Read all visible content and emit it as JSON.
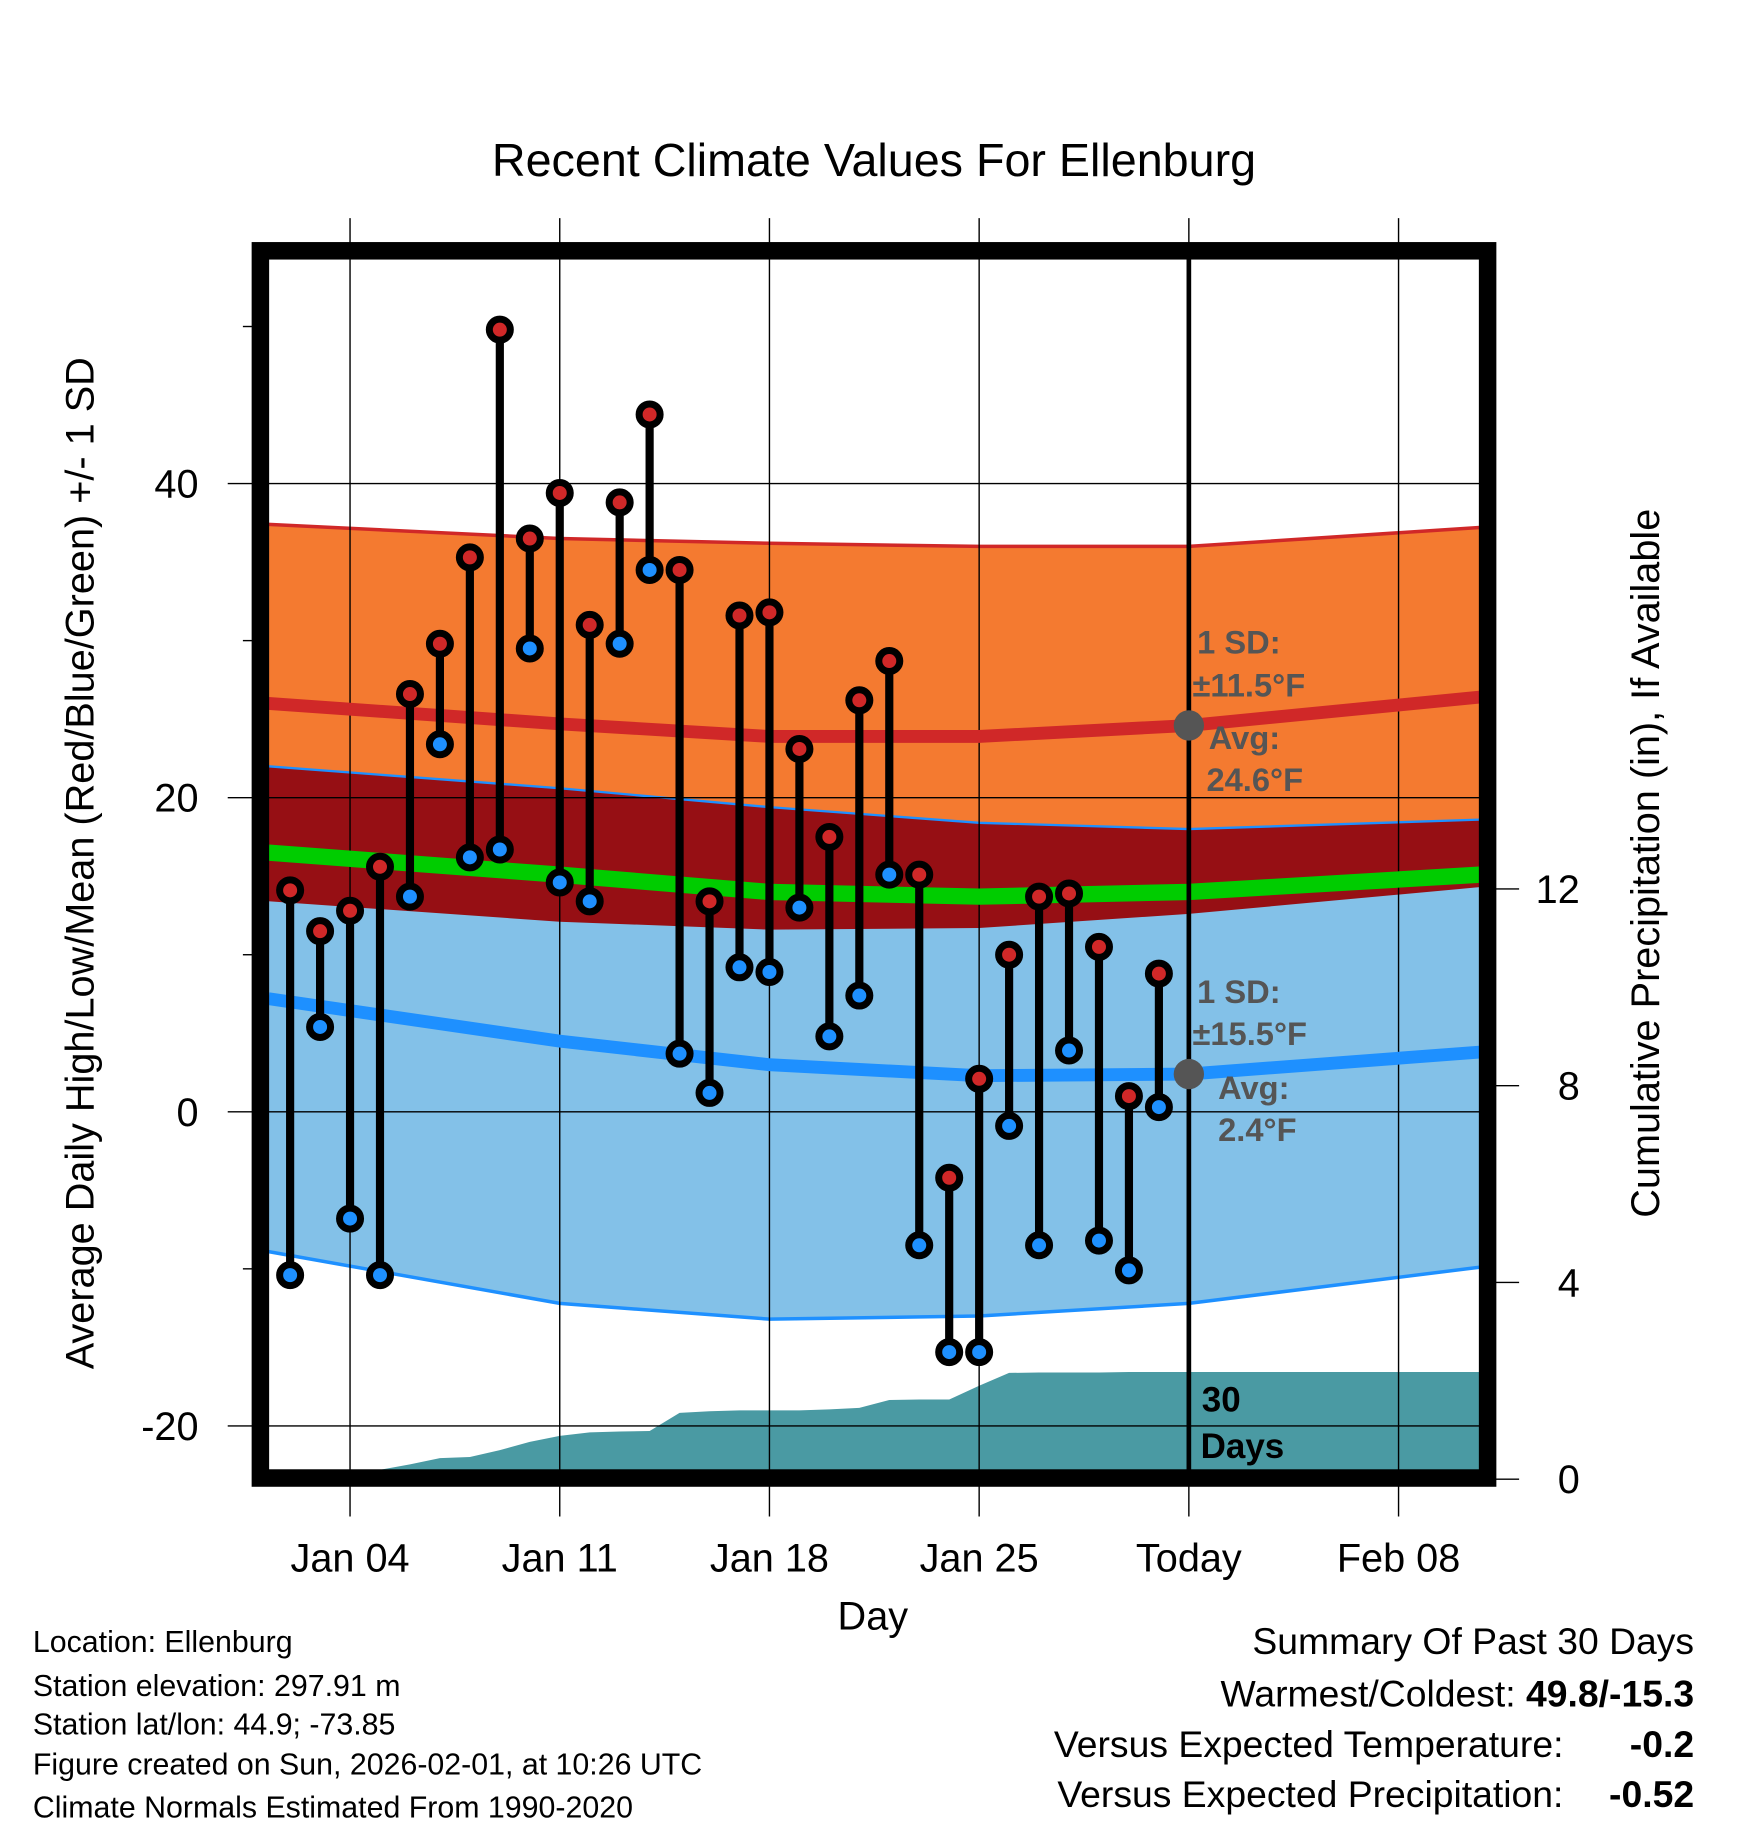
{
  "chart_data": {
    "type": "line",
    "title": "Recent Climate Values For Ellenburg",
    "xlabel": "Day",
    "ylabel": "Average Daily High/Low/Mean (Red/Blue/Green) +/- 1 SD",
    "y2label": "Cumulative Precipitation (in), If Available",
    "ylim": [
      -22.8,
      54.3
    ],
    "y2lim": [
      0,
      24.8
    ],
    "y_ticks": [
      -20,
      0,
      20,
      40
    ],
    "y_minor_ticks": [
      -10,
      10,
      30,
      50
    ],
    "y2_ticks": [
      0,
      4,
      8,
      12
    ],
    "x_range_day_of_jan": [
      1.28,
      41.7
    ],
    "x_ticks": [
      {
        "day": 4,
        "label": "Jan 04"
      },
      {
        "day": 11,
        "label": "Jan 11"
      },
      {
        "day": 18,
        "label": "Jan 18"
      },
      {
        "day": 25,
        "label": "Jan 25"
      },
      {
        "day": 32,
        "label": "Today"
      },
      {
        "day": 39,
        "label": "Feb 08"
      }
    ],
    "today_day": 32,
    "grid": true,
    "daily": {
      "day_of_jan": [
        2,
        3,
        4,
        5,
        6,
        7,
        8,
        9,
        10,
        11,
        12,
        13,
        14,
        15,
        16,
        17,
        18,
        19,
        20,
        21,
        22,
        23,
        24,
        25,
        26,
        27,
        28,
        29,
        30,
        31
      ],
      "high": [
        14.1,
        11.5,
        12.8,
        15.6,
        26.6,
        29.8,
        35.3,
        49.8,
        36.5,
        39.4,
        31.0,
        38.8,
        44.4,
        34.5,
        13.4,
        31.6,
        31.8,
        23.1,
        17.5,
        26.2,
        28.7,
        15.1,
        -4.2,
        2.1,
        10.0,
        13.7,
        13.9,
        10.5,
        1.0,
        8.8
      ],
      "low": [
        -10.4,
        5.4,
        -6.8,
        -10.4,
        13.7,
        23.4,
        16.2,
        16.7,
        29.5,
        14.6,
        13.4,
        29.8,
        34.5,
        3.7,
        1.2,
        9.2,
        8.9,
        13.0,
        4.8,
        7.4,
        15.1,
        -8.5,
        -15.3,
        -15.3,
        -0.9,
        -8.5,
        3.9,
        -8.2,
        -10.1,
        0.3
      ]
    },
    "normals": {
      "day_of_jan": [
        1.28,
        11,
        18,
        25,
        32,
        41.7
      ],
      "high_plus_sd": [
        37.4,
        36.5,
        36.2,
        36.0,
        36.0,
        37.2
      ],
      "high_avg": [
        26.0,
        24.7,
        23.9,
        23.9,
        24.6,
        26.4
      ],
      "high_minus_sd": [
        13.4,
        12.1,
        11.6,
        11.7,
        12.6,
        14.3
      ],
      "mean_avg": [
        16.5,
        15.1,
        14.0,
        13.7,
        14.0,
        15.1
      ],
      "low_plus_sd": [
        22.0,
        20.6,
        19.4,
        18.4,
        18.0,
        18.6
      ],
      "low_avg": [
        7.2,
        4.5,
        3.0,
        2.3,
        2.4,
        3.8
      ],
      "low_minus_sd": [
        -8.9,
        -12.2,
        -13.2,
        -13.0,
        -12.2,
        -9.9
      ]
    },
    "precip_cumulative": {
      "day_of_jan": [
        4.3,
        5,
        6,
        7,
        8,
        9,
        10,
        11,
        12,
        13,
        14,
        15,
        16,
        17,
        18,
        19,
        20,
        21,
        22,
        23,
        24,
        25,
        26,
        27,
        28,
        29,
        30,
        31,
        32,
        41.7
      ],
      "inches": [
        0,
        0.19,
        0.3,
        0.43,
        0.45,
        0.59,
        0.76,
        0.88,
        0.95,
        0.97,
        0.98,
        1.35,
        1.38,
        1.4,
        1.4,
        1.4,
        1.42,
        1.45,
        1.61,
        1.62,
        1.62,
        1.9,
        2.16,
        2.17,
        2.17,
        2.17,
        2.18,
        2.18,
        2.18,
        2.18
      ]
    },
    "annotations": {
      "high_sd": "1 SD:",
      "high_sd_val": "±11.5°F",
      "high_avg": "Avg:",
      "high_avg_val": "24.6°F",
      "low_sd": "1 SD:",
      "low_sd_val": "±15.5°F",
      "low_avg": "Avg:",
      "low_avg_val": "2.4°F",
      "days_num": "30",
      "days_word": "Days"
    },
    "colors": {
      "high_band": "#f47a30",
      "overlap_band": "#960f14",
      "low_band": "#83c1e8",
      "mean_line": "#00cc00",
      "high_line": "#d02828",
      "low_line": "#1e90ff",
      "precip": "#4a9aa3"
    }
  },
  "info": {
    "location": "Location: Ellenburg",
    "elevation": "Station elevation: 297.91 m",
    "latlon": "Station lat/lon: 44.9; -73.85",
    "created": "Figure created on Sun, 2026-02-01, at 10:26 UTC",
    "normals": "Climate Normals Estimated From 1990-2020"
  },
  "summary": {
    "title": "Summary Of Past 30 Days",
    "warmest_label": "Warmest/Coldest:",
    "warmest_value": "49.8/-15.3",
    "temp_label": "Versus Expected Temperature:",
    "temp_value": "-0.2",
    "temp_color": "#1e90ff",
    "precip_label": "Versus Expected Precipitation:",
    "precip_value": "-0.52",
    "precip_color": "#a0522d"
  }
}
